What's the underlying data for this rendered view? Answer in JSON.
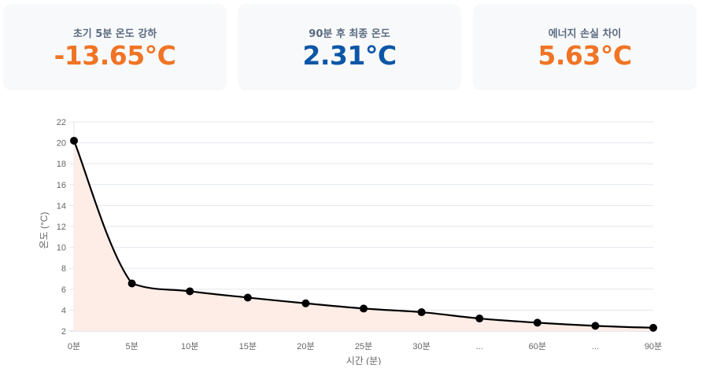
{
  "cards": [
    {
      "label": "초기 5분 온도 강하",
      "value": "-13.65°C",
      "color": "#f07424"
    },
    {
      "label": "90분 후 최종 온도",
      "value": "2.31°C",
      "color": "#0b56a6"
    },
    {
      "label": "에너지 손실 차이",
      "value": "5.63°C",
      "color": "#f07424"
    }
  ],
  "chart_data": {
    "type": "line",
    "title": "",
    "xlabel": "시간 (분)",
    "ylabel": "온도 (°C)",
    "categories": [
      "0분",
      "5분",
      "10분",
      "15분",
      "20분",
      "25분",
      "30분",
      "...",
      "60분",
      "...",
      "90분"
    ],
    "series": [
      {
        "name": "온도",
        "values": [
          20.2,
          6.55,
          5.8,
          5.2,
          4.65,
          4.15,
          3.8,
          3.2,
          2.8,
          2.5,
          2.31
        ],
        "line_color": "#000000",
        "fill_color": "#fdede6"
      }
    ],
    "ylim": [
      2,
      22
    ],
    "yticks": [
      2,
      4,
      6,
      8,
      10,
      12,
      14,
      16,
      18,
      20,
      22
    ],
    "grid": true,
    "legend": "none"
  }
}
